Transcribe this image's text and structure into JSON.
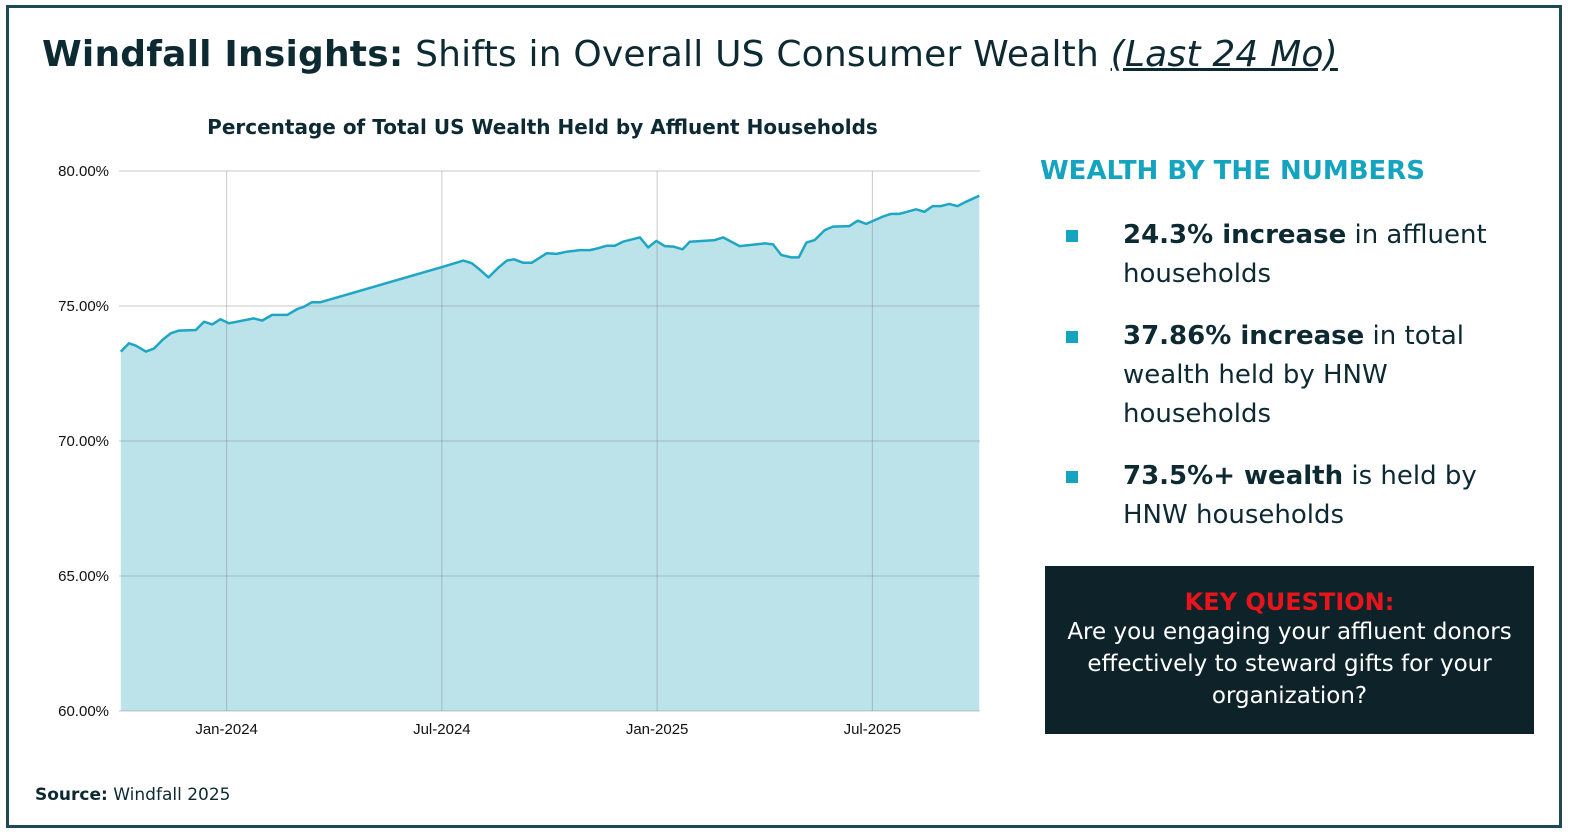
{
  "header": {
    "title_bold": "Windfall Insights:",
    "title_main": "Shifts in Overall US Consumer Wealth",
    "title_period": "(Last 24 Mo)"
  },
  "chart_data": {
    "type": "area",
    "title": "Percentage of Total US Wealth Held by Affluent Households",
    "xlabel": "",
    "ylabel": "",
    "x_unit": "months since Jan-2024",
    "ylim": [
      60,
      80
    ],
    "xlim": [
      -3,
      21
    ],
    "y_ticks": [
      {
        "v": 80,
        "label": "80.00%"
      },
      {
        "v": 75,
        "label": "75.00%"
      },
      {
        "v": 70,
        "label": "70.00%"
      },
      {
        "v": 65,
        "label": "65.00%"
      },
      {
        "v": 60,
        "label": "60.00%"
      }
    ],
    "x_ticks": [
      {
        "v": 0,
        "label": "Jan-2024"
      },
      {
        "v": 6,
        "label": "Jul-2024"
      },
      {
        "v": 12,
        "label": "Jan-2025"
      },
      {
        "v": 18,
        "label": "Jul-2025"
      }
    ],
    "grid": true,
    "color": "#1ea6c4",
    "fill": "#bce3ea",
    "x": [
      -2.95,
      -2.72,
      -2.53,
      -2.25,
      -2.02,
      -1.79,
      -1.56,
      -1.33,
      -0.86,
      -0.63,
      -0.4,
      -0.17,
      0.06,
      0.76,
      0.99,
      1.27,
      1.69,
      1.97,
      2.15,
      2.38,
      2.62,
      6.05,
      6.6,
      6.84,
      7.07,
      7.3,
      7.58,
      7.81,
      8.01,
      8.27,
      8.5,
      8.74,
      8.92,
      9.2,
      9.48,
      9.85,
      10.13,
      10.36,
      10.59,
      10.82,
      11.05,
      11.52,
      11.75,
      11.98,
      12.21,
      12.45,
      12.71,
      12.91,
      13.61,
      13.84,
      14.3,
      15.0,
      15.23,
      15.46,
      15.74,
      15.95,
      16.16,
      16.39,
      16.67,
      16.9,
      17.36,
      17.59,
      17.83,
      18.29,
      18.52,
      18.75,
      19.22,
      19.45,
      19.68,
      19.91,
      20.14,
      20.37,
      20.61,
      20.89,
      20.98
    ],
    "values": [
      73.31,
      73.62,
      73.53,
      73.31,
      73.43,
      73.74,
      73.99,
      74.09,
      74.11,
      74.42,
      74.32,
      74.51,
      74.36,
      74.54,
      74.46,
      74.67,
      74.67,
      74.89,
      74.97,
      75.14,
      75.14,
      76.46,
      76.68,
      76.58,
      76.33,
      76.06,
      76.43,
      76.68,
      76.73,
      76.6,
      76.6,
      76.8,
      76.95,
      76.93,
      77.01,
      77.07,
      77.07,
      77.14,
      77.23,
      77.23,
      77.38,
      77.54,
      77.17,
      77.41,
      77.22,
      77.2,
      77.1,
      77.38,
      77.44,
      77.54,
      77.22,
      77.32,
      77.28,
      76.89,
      76.8,
      76.8,
      77.35,
      77.44,
      77.81,
      77.94,
      77.96,
      78.16,
      78.04,
      78.31,
      78.41,
      78.41,
      78.58,
      78.49,
      78.7,
      78.7,
      78.78,
      78.7,
      78.86,
      79.03,
      79.08
    ]
  },
  "panel": {
    "heading": "WEALTH BY THE NUMBERS",
    "bullets": [
      {
        "bold": "24.3% increase",
        "rest": " in affluent households"
      },
      {
        "bold": "37.86% increase",
        "rest": " in total wealth held by HNW households"
      },
      {
        "bold": "73.5%+ wealth",
        "rest": " is held by HNW households"
      }
    ],
    "accent": "#14a4bf"
  },
  "key": {
    "heading": "KEY QUESTION:",
    "body": "Are you engaging your affluent donors effectively to steward gifts for your organization?"
  },
  "source": {
    "label": "Source:",
    "value": " Windfall 2025"
  }
}
